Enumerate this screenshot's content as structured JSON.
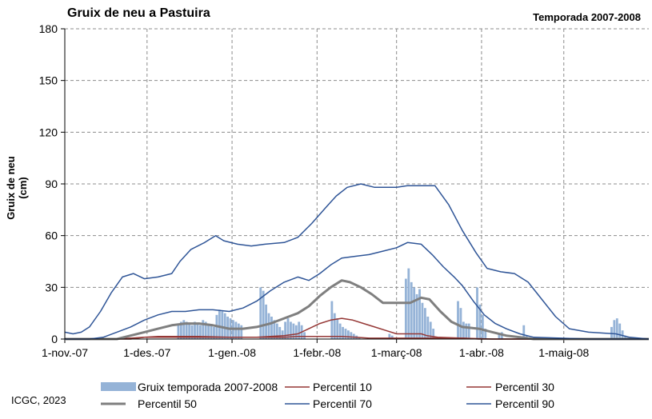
{
  "chart_data": {
    "type": "line",
    "title": "Gruix de neu a Pastuira",
    "subtitle": "Temporada 2007-2008",
    "ylabel": "Gruix de neu (cm)",
    "xlabel": "",
    "ylim": [
      0,
      180
    ],
    "yticks": [
      "0",
      "30",
      "60",
      "90",
      "120",
      "150",
      "180"
    ],
    "xlim": [
      "2007-11-01",
      "2008-06-01"
    ],
    "xticks": [
      {
        "date": "2007-11-01",
        "label": "1-nov.-07"
      },
      {
        "date": "2007-12-01",
        "label": "1-des.-07"
      },
      {
        "date": "2008-01-01",
        "label": "1-gen.-08"
      },
      {
        "date": "2008-02-01",
        "label": "1-febr.-08"
      },
      {
        "date": "2008-03-01",
        "label": "1-març-08"
      },
      {
        "date": "2008-04-01",
        "label": "1-abr.-08"
      },
      {
        "date": "2008-05-01",
        "label": "1-maig-08"
      }
    ],
    "grid": true,
    "legend_position": "bottom",
    "bars": {
      "name": "Gruix temporada 2007-2008",
      "color": "#95b3d7",
      "points": [
        [
          "2007-12-12",
          8
        ],
        [
          "2007-12-13",
          10
        ],
        [
          "2007-12-14",
          11
        ],
        [
          "2007-12-15",
          10
        ],
        [
          "2007-12-16",
          9
        ],
        [
          "2007-12-17",
          8
        ],
        [
          "2007-12-18",
          10
        ],
        [
          "2007-12-19",
          9
        ],
        [
          "2007-12-20",
          8
        ],
        [
          "2007-12-21",
          11
        ],
        [
          "2007-12-22",
          10
        ],
        [
          "2007-12-23",
          9
        ],
        [
          "2007-12-24",
          8
        ],
        [
          "2007-12-25",
          7
        ],
        [
          "2007-12-26",
          14
        ],
        [
          "2007-12-27",
          17
        ],
        [
          "2007-12-28",
          16
        ],
        [
          "2007-12-29",
          15
        ],
        [
          "2007-12-30",
          13
        ],
        [
          "2007-12-31",
          12
        ],
        [
          "2008-01-01",
          11
        ],
        [
          "2008-01-02",
          10
        ],
        [
          "2008-01-03",
          9
        ],
        [
          "2008-01-04",
          8
        ],
        [
          "2008-01-11",
          30
        ],
        [
          "2008-01-12",
          28
        ],
        [
          "2008-01-13",
          20
        ],
        [
          "2008-01-14",
          15
        ],
        [
          "2008-01-15",
          13
        ],
        [
          "2008-01-16",
          11
        ],
        [
          "2008-01-17",
          9
        ],
        [
          "2008-01-18",
          7
        ],
        [
          "2008-01-19",
          5
        ],
        [
          "2008-01-20",
          10
        ],
        [
          "2008-01-21",
          12
        ],
        [
          "2008-01-22",
          10
        ],
        [
          "2008-01-23",
          9
        ],
        [
          "2008-01-24",
          8
        ],
        [
          "2008-01-25",
          10
        ],
        [
          "2008-01-26",
          8
        ],
        [
          "2008-01-27",
          4
        ],
        [
          "2008-02-06",
          22
        ],
        [
          "2008-02-07",
          15
        ],
        [
          "2008-02-08",
          12
        ],
        [
          "2008-02-09",
          9
        ],
        [
          "2008-02-10",
          7
        ],
        [
          "2008-02-11",
          6
        ],
        [
          "2008-02-12",
          5
        ],
        [
          "2008-02-13",
          4
        ],
        [
          "2008-02-14",
          3
        ],
        [
          "2008-02-15",
          2
        ],
        [
          "2008-02-16",
          1
        ],
        [
          "2008-02-27",
          3
        ],
        [
          "2008-02-28",
          2
        ],
        [
          "2008-03-04",
          35
        ],
        [
          "2008-03-05",
          41
        ],
        [
          "2008-03-06",
          33
        ],
        [
          "2008-03-07",
          30
        ],
        [
          "2008-03-08",
          26
        ],
        [
          "2008-03-09",
          29
        ],
        [
          "2008-03-10",
          21
        ],
        [
          "2008-03-11",
          18
        ],
        [
          "2008-03-12",
          13
        ],
        [
          "2008-03-13",
          10
        ],
        [
          "2008-03-14",
          6
        ],
        [
          "2008-03-23",
          22
        ],
        [
          "2008-03-24",
          18
        ],
        [
          "2008-03-25",
          10
        ],
        [
          "2008-03-26",
          9
        ],
        [
          "2008-03-27",
          9
        ],
        [
          "2008-03-30",
          30
        ],
        [
          "2008-03-31",
          20
        ],
        [
          "2008-04-01",
          14
        ],
        [
          "2008-04-02",
          6
        ],
        [
          "2008-04-07",
          3
        ],
        [
          "2008-04-08",
          4
        ],
        [
          "2008-04-16",
          8
        ],
        [
          "2008-04-17",
          2
        ],
        [
          "2008-04-18",
          1
        ],
        [
          "2008-05-18",
          7
        ],
        [
          "2008-05-19",
          11
        ],
        [
          "2008-05-20",
          12
        ],
        [
          "2008-05-21",
          9
        ],
        [
          "2008-05-22",
          5
        ],
        [
          "2008-05-23",
          2
        ],
        [
          "2008-05-24",
          1
        ]
      ]
    },
    "series": [
      {
        "name": "Percentil 10",
        "color": "#953735",
        "width": 1.5,
        "points": [
          [
            "2007-11-01",
            0
          ],
          [
            "2007-11-20",
            0
          ],
          [
            "2007-11-25",
            0.5
          ],
          [
            "2007-11-30",
            1
          ],
          [
            "2007-12-05",
            1
          ],
          [
            "2007-12-20",
            1
          ],
          [
            "2007-12-31",
            1
          ],
          [
            "2008-01-10",
            1
          ],
          [
            "2008-01-20",
            1
          ],
          [
            "2008-01-25",
            1.5
          ],
          [
            "2008-02-01",
            1.5
          ],
          [
            "2008-02-10",
            1.5
          ],
          [
            "2008-02-15",
            1
          ],
          [
            "2008-02-20",
            0.5
          ],
          [
            "2008-02-25",
            0.5
          ],
          [
            "2008-03-05",
            0.5
          ],
          [
            "2008-03-15",
            0.5
          ],
          [
            "2008-03-25",
            0.5
          ],
          [
            "2008-03-31",
            0
          ],
          [
            "2008-06-01",
            0
          ]
        ]
      },
      {
        "name": "Percentil 30",
        "color": "#953735",
        "width": 1.5,
        "points": [
          [
            "2007-11-01",
            0
          ],
          [
            "2007-11-25",
            0
          ],
          [
            "2007-11-30",
            1
          ],
          [
            "2007-12-05",
            1.5
          ],
          [
            "2007-12-20",
            1.5
          ],
          [
            "2007-12-31",
            1
          ],
          [
            "2008-01-10",
            1
          ],
          [
            "2008-01-20",
            2
          ],
          [
            "2008-01-25",
            3
          ],
          [
            "2008-01-29",
            6
          ],
          [
            "2008-02-02",
            9
          ],
          [
            "2008-02-06",
            11
          ],
          [
            "2008-02-10",
            12
          ],
          [
            "2008-02-14",
            11
          ],
          [
            "2008-02-18",
            9
          ],
          [
            "2008-02-22",
            7
          ],
          [
            "2008-02-26",
            5
          ],
          [
            "2008-03-01",
            3
          ],
          [
            "2008-03-05",
            3
          ],
          [
            "2008-03-10",
            3
          ],
          [
            "2008-03-12",
            2
          ],
          [
            "2008-03-16",
            1
          ],
          [
            "2008-03-25",
            0.5
          ],
          [
            "2008-04-05",
            0
          ],
          [
            "2008-06-01",
            0
          ]
        ]
      },
      {
        "name": "Percentil 50",
        "color": "#7f7f7f",
        "width": 3,
        "points": [
          [
            "2007-11-01",
            0
          ],
          [
            "2007-11-20",
            0
          ],
          [
            "2007-11-25",
            2
          ],
          [
            "2007-11-30",
            4
          ],
          [
            "2007-12-05",
            6
          ],
          [
            "2007-12-10",
            8
          ],
          [
            "2007-12-15",
            9
          ],
          [
            "2007-12-20",
            9
          ],
          [
            "2007-12-25",
            8
          ],
          [
            "2007-12-31",
            6
          ],
          [
            "2008-01-05",
            6
          ],
          [
            "2008-01-10",
            7
          ],
          [
            "2008-01-15",
            9
          ],
          [
            "2008-01-20",
            12
          ],
          [
            "2008-01-25",
            15
          ],
          [
            "2008-01-29",
            19
          ],
          [
            "2008-02-02",
            25
          ],
          [
            "2008-02-06",
            30
          ],
          [
            "2008-02-10",
            34
          ],
          [
            "2008-02-13",
            33
          ],
          [
            "2008-02-17",
            30
          ],
          [
            "2008-02-21",
            26
          ],
          [
            "2008-02-25",
            21
          ],
          [
            "2008-03-01",
            21
          ],
          [
            "2008-03-06",
            21
          ],
          [
            "2008-03-10",
            24
          ],
          [
            "2008-03-13",
            23
          ],
          [
            "2008-03-17",
            16
          ],
          [
            "2008-03-21",
            10
          ],
          [
            "2008-03-25",
            7
          ],
          [
            "2008-03-31",
            6
          ],
          [
            "2008-04-05",
            4
          ],
          [
            "2008-04-10",
            2
          ],
          [
            "2008-04-15",
            1
          ],
          [
            "2008-04-20",
            0
          ],
          [
            "2008-06-01",
            0
          ]
        ]
      },
      {
        "name": "Percentil 70",
        "color": "#2f5597",
        "width": 1.5,
        "points": [
          [
            "2007-11-01",
            0
          ],
          [
            "2007-11-10",
            0
          ],
          [
            "2007-11-15",
            1
          ],
          [
            "2007-11-20",
            4
          ],
          [
            "2007-11-25",
            7
          ],
          [
            "2007-11-30",
            11
          ],
          [
            "2007-12-05",
            14
          ],
          [
            "2007-12-10",
            16
          ],
          [
            "2007-12-15",
            16
          ],
          [
            "2007-12-20",
            17
          ],
          [
            "2007-12-25",
            17
          ],
          [
            "2007-12-31",
            16
          ],
          [
            "2008-01-05",
            18
          ],
          [
            "2008-01-10",
            22
          ],
          [
            "2008-01-15",
            28
          ],
          [
            "2008-01-20",
            33
          ],
          [
            "2008-01-25",
            36
          ],
          [
            "2008-01-29",
            34
          ],
          [
            "2008-02-02",
            38
          ],
          [
            "2008-02-06",
            43
          ],
          [
            "2008-02-10",
            47
          ],
          [
            "2008-02-15",
            48
          ],
          [
            "2008-02-20",
            49
          ],
          [
            "2008-02-25",
            51
          ],
          [
            "2008-03-01",
            53
          ],
          [
            "2008-03-05",
            56
          ],
          [
            "2008-03-10",
            55
          ],
          [
            "2008-03-14",
            49
          ],
          [
            "2008-03-18",
            42
          ],
          [
            "2008-03-22",
            36
          ],
          [
            "2008-03-25",
            31
          ],
          [
            "2008-03-29",
            22
          ],
          [
            "2008-04-02",
            14
          ],
          [
            "2008-04-06",
            9
          ],
          [
            "2008-04-10",
            6
          ],
          [
            "2008-04-15",
            3
          ],
          [
            "2008-04-20",
            1
          ],
          [
            "2008-04-30",
            0.5
          ],
          [
            "2008-05-10",
            0
          ],
          [
            "2008-06-01",
            0
          ]
        ]
      },
      {
        "name": "Percentil 90",
        "color": "#2f5597",
        "width": 1.5,
        "points": [
          [
            "2007-11-01",
            4
          ],
          [
            "2007-11-04",
            3
          ],
          [
            "2007-11-07",
            4
          ],
          [
            "2007-11-10",
            7
          ],
          [
            "2007-11-14",
            16
          ],
          [
            "2007-11-18",
            27
          ],
          [
            "2007-11-22",
            36
          ],
          [
            "2007-11-26",
            38
          ],
          [
            "2007-11-30",
            35
          ],
          [
            "2007-12-05",
            36
          ],
          [
            "2007-12-10",
            38
          ],
          [
            "2007-12-13",
            45
          ],
          [
            "2007-12-17",
            52
          ],
          [
            "2007-12-22",
            56
          ],
          [
            "2007-12-26",
            60
          ],
          [
            "2007-12-29",
            57
          ],
          [
            "2008-01-03",
            55
          ],
          [
            "2008-01-08",
            54
          ],
          [
            "2008-01-13",
            55
          ],
          [
            "2008-01-20",
            56
          ],
          [
            "2008-01-25",
            59
          ],
          [
            "2008-01-30",
            67
          ],
          [
            "2008-02-04",
            76
          ],
          [
            "2008-02-08",
            83
          ],
          [
            "2008-02-12",
            88
          ],
          [
            "2008-02-17",
            90
          ],
          [
            "2008-02-22",
            88
          ],
          [
            "2008-03-01",
            88
          ],
          [
            "2008-03-05",
            89
          ],
          [
            "2008-03-10",
            89
          ],
          [
            "2008-03-15",
            89
          ],
          [
            "2008-03-20",
            78
          ],
          [
            "2008-03-25",
            63
          ],
          [
            "2008-03-30",
            50
          ],
          [
            "2008-04-03",
            41
          ],
          [
            "2008-04-08",
            39
          ],
          [
            "2008-04-13",
            38
          ],
          [
            "2008-04-18",
            33
          ],
          [
            "2008-04-23",
            23
          ],
          [
            "2008-04-28",
            13
          ],
          [
            "2008-05-03",
            6
          ],
          [
            "2008-05-10",
            4
          ],
          [
            "2008-05-20",
            3
          ],
          [
            "2008-05-25",
            1
          ],
          [
            "2008-06-01",
            0
          ]
        ]
      }
    ]
  },
  "credit": "ICGC, 2023"
}
